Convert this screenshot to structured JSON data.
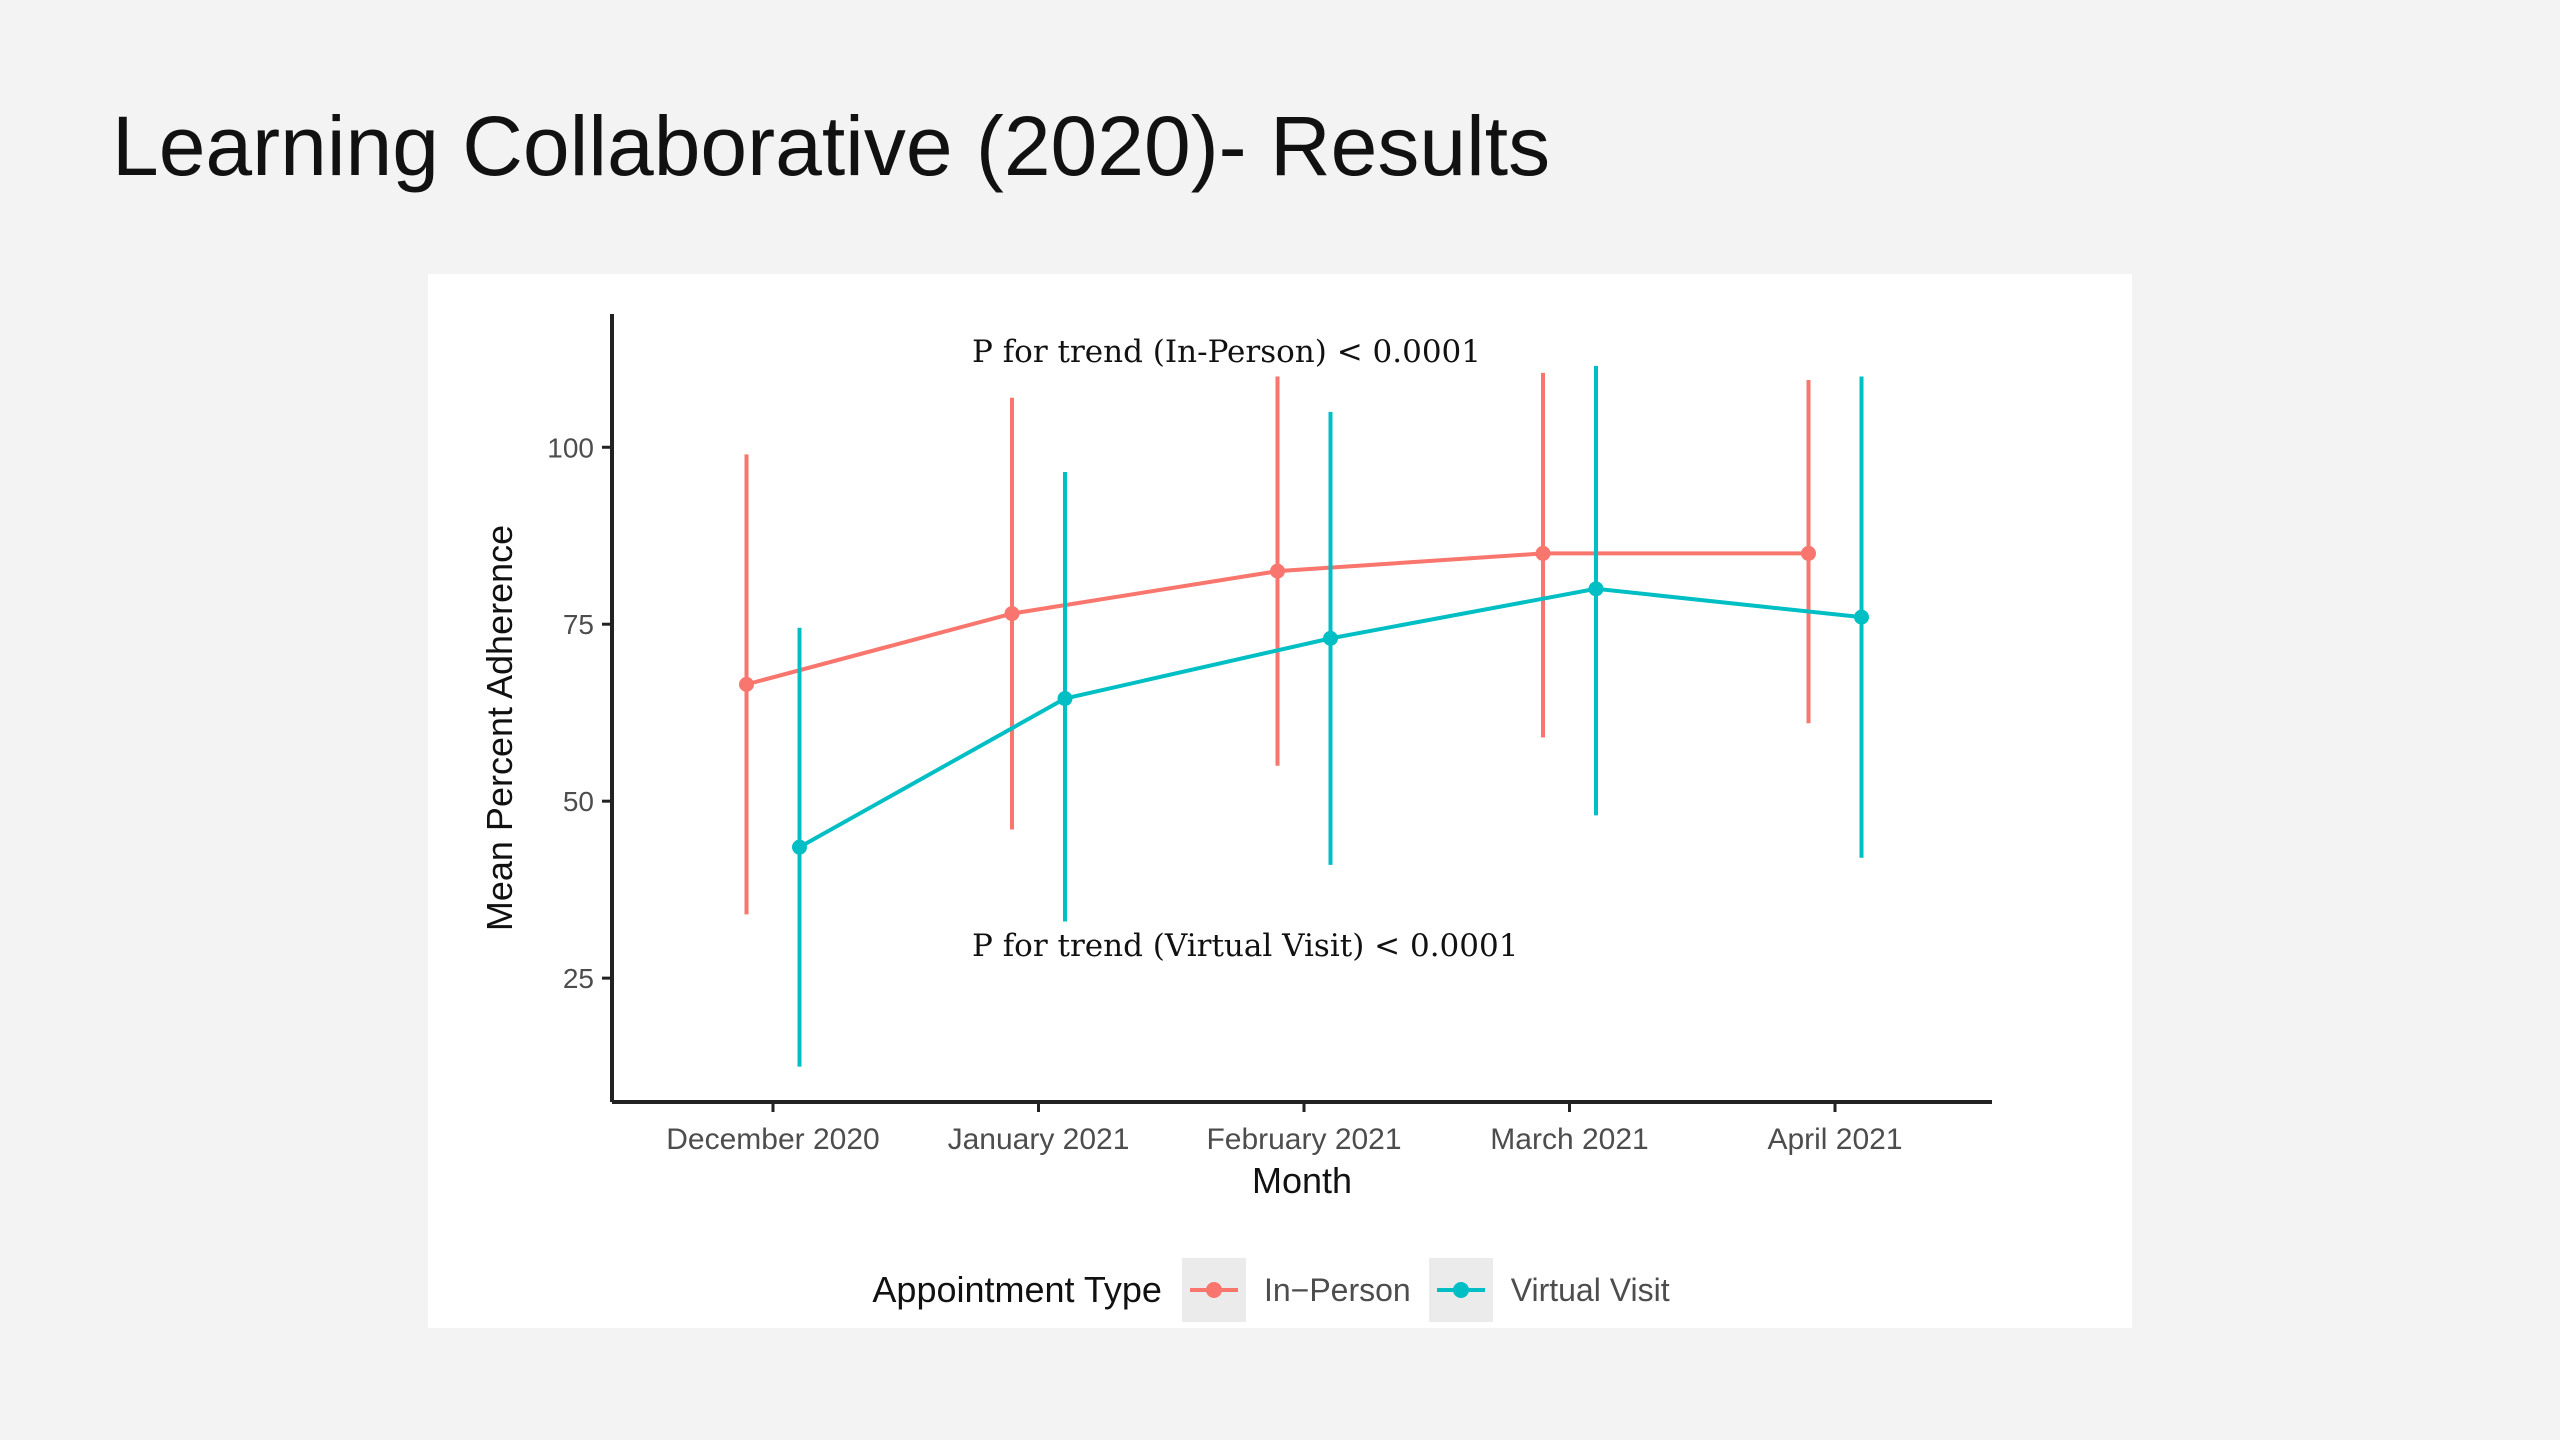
{
  "slide": {
    "title": "Learning Collaborative (2020)- Results"
  },
  "legend": {
    "title": "Appointment Type"
  },
  "colors": {
    "in_person": "#f8766d",
    "virtual": "#00bfc4",
    "axis": "#222222",
    "tick_text": "#4d4d4d"
  },
  "chart_data": {
    "type": "line",
    "categories": [
      "December 2020",
      "January 2021",
      "February 2021",
      "March 2021",
      "April 2021"
    ],
    "xlabel": "Month",
    "ylabel": "Mean Percent Adherence",
    "yticks": [
      25,
      50,
      75,
      100
    ],
    "ylim": [
      7.5,
      116
    ],
    "grid": false,
    "legend_position": "bottom",
    "series": [
      {
        "name": "In−Person",
        "color": "#f8766d",
        "values": [
          66.5,
          76.5,
          82.5,
          85,
          85
        ],
        "lower": [
          34,
          46,
          55,
          59,
          61
        ],
        "upper": [
          99,
          107,
          110,
          110.5,
          109.5
        ]
      },
      {
        "name": "Virtual Visit",
        "color": "#00bfc4",
        "values": [
          43.5,
          64.5,
          73,
          80,
          76
        ],
        "lower": [
          12.5,
          33,
          41,
          48,
          42
        ],
        "upper": [
          74.5,
          96.5,
          105,
          111.5,
          110
        ]
      }
    ],
    "annotations": [
      "P for trend (In-Person) < 0.0001",
      "P for trend (Virtual Visit) < 0.0001"
    ]
  }
}
